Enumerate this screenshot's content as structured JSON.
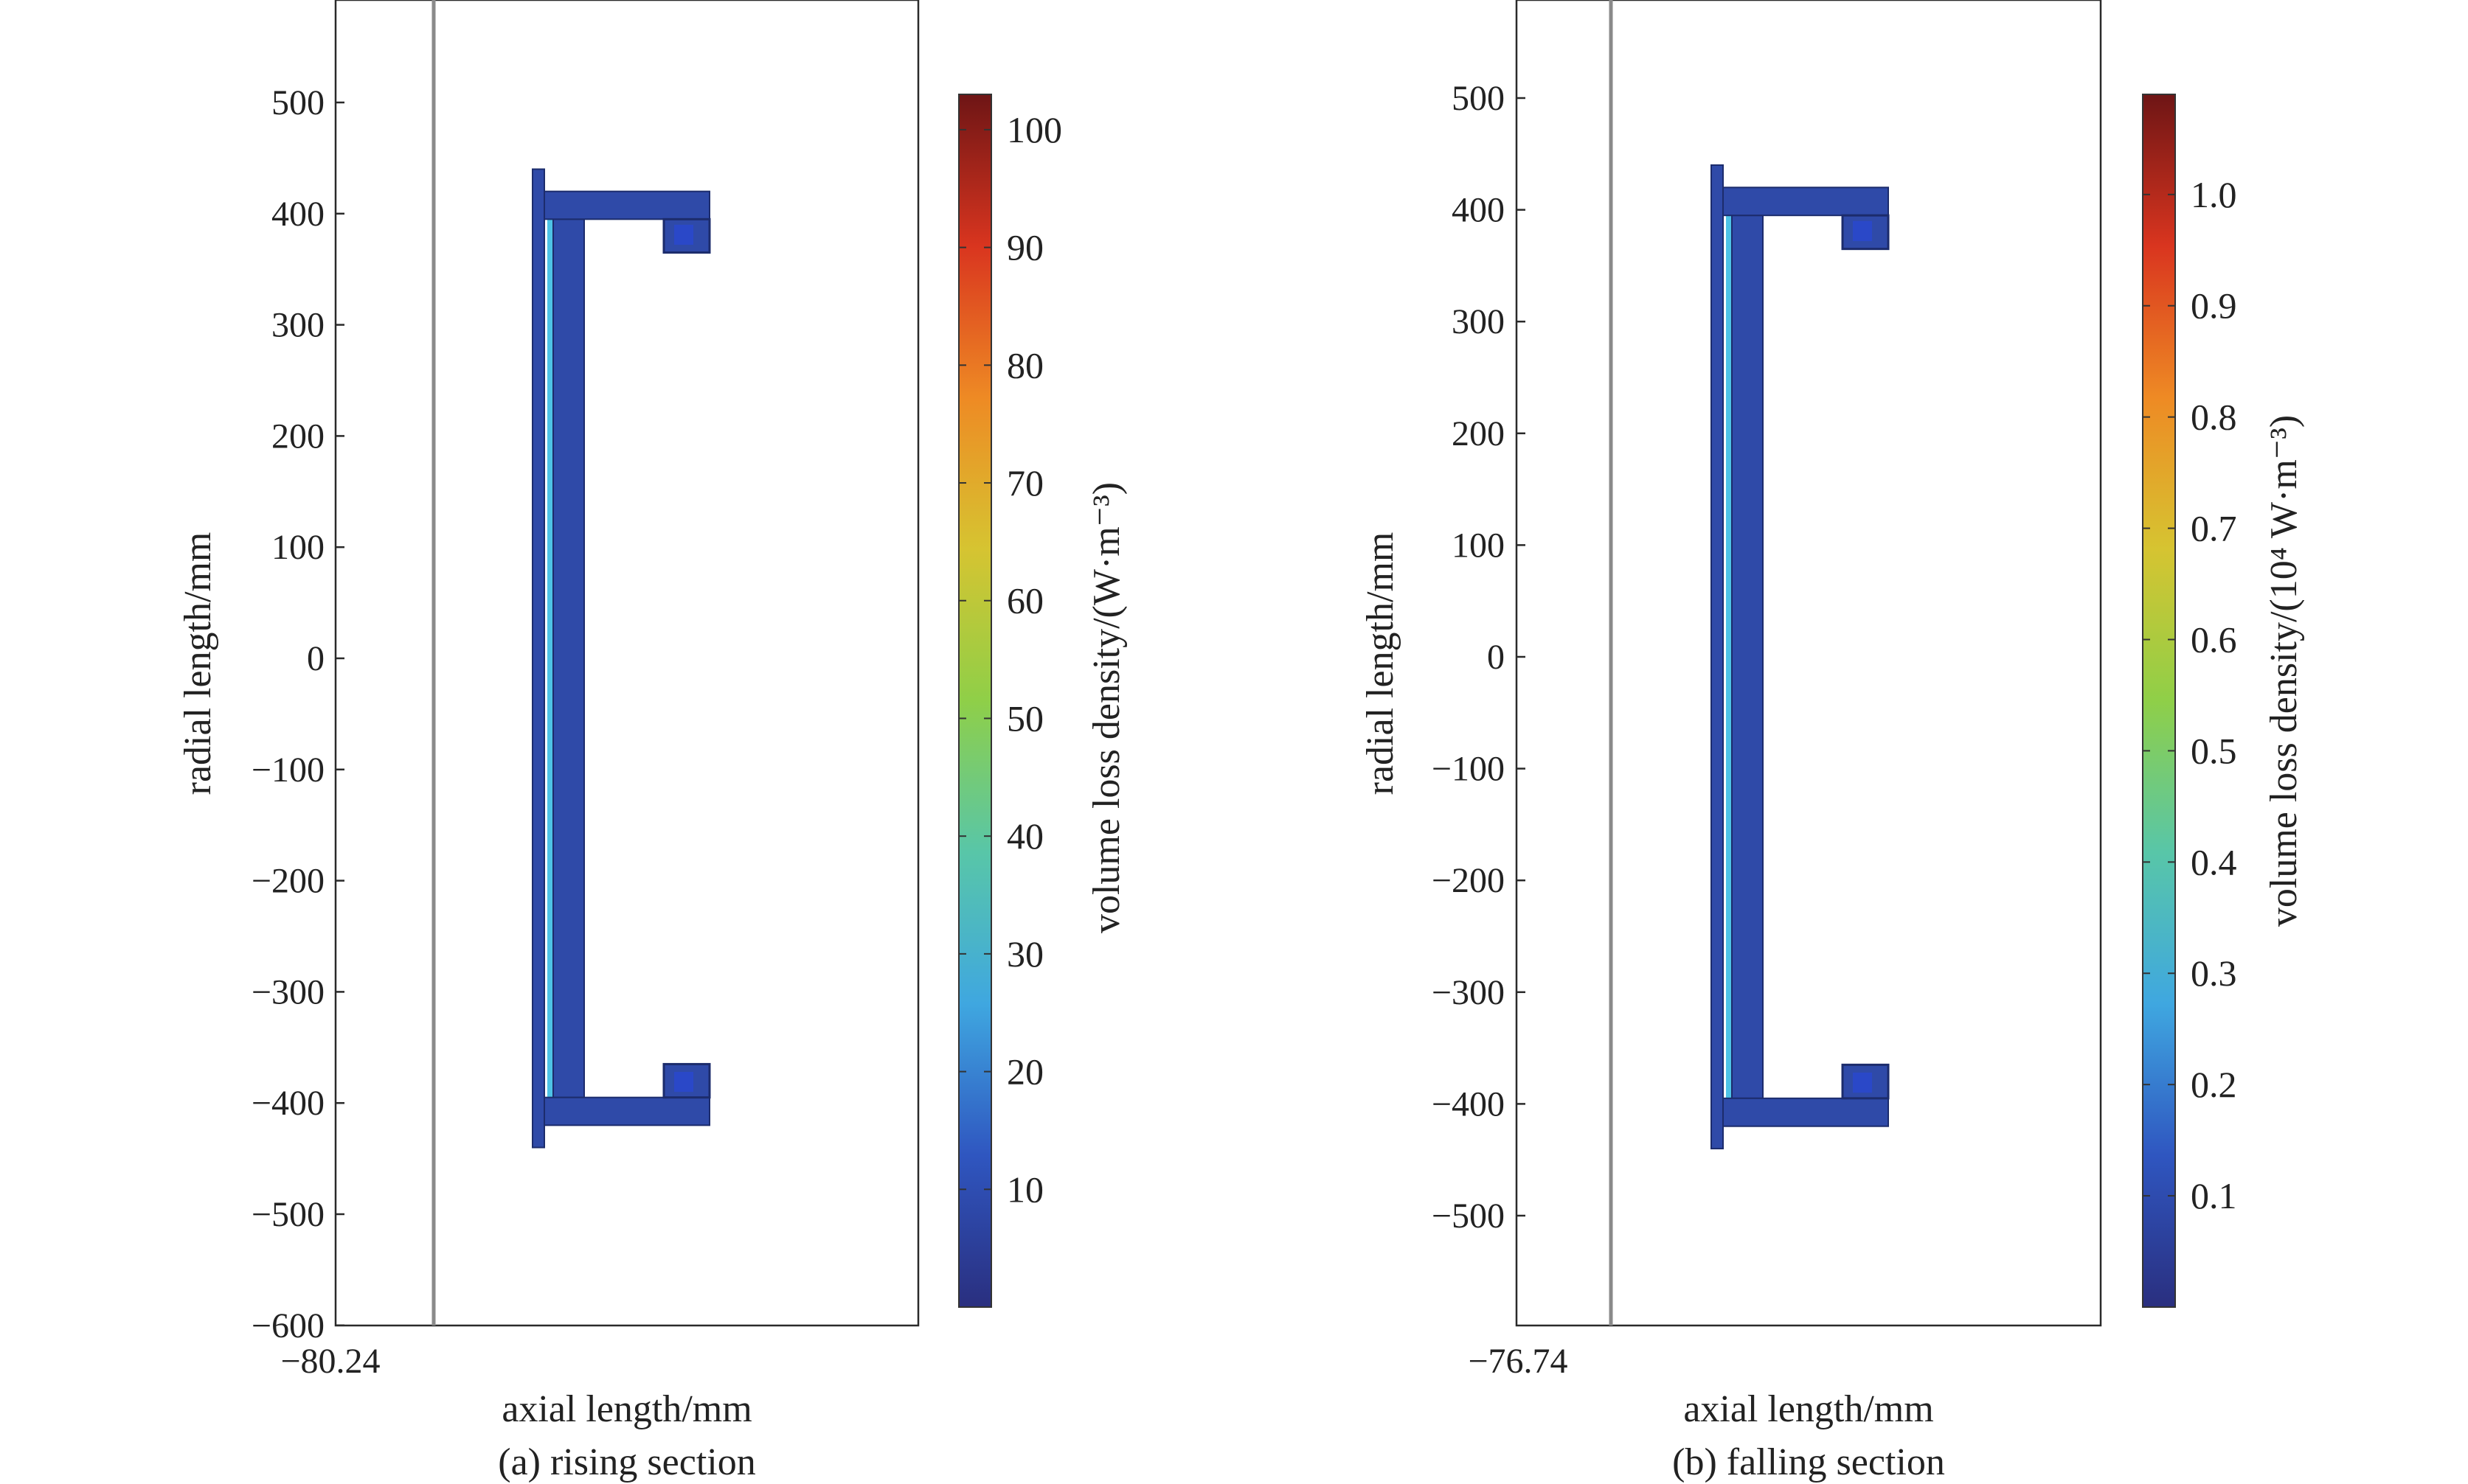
{
  "colors": {
    "frame": "#2a2a2a",
    "wall_line": "#8a8a8a",
    "region_fill": "#2f4aa8",
    "region_edge": "#1c2c6c",
    "inner_edge": "#4ec3e6",
    "colormap": [
      "#2a2f7f",
      "#2f56c0",
      "#3fa7e0",
      "#58c6a8",
      "#8fcf48",
      "#d6c431",
      "#ee8a24",
      "#d9351f",
      "#6e1515"
    ]
  },
  "chart_data": [
    {
      "type": "heatmap",
      "title": "",
      "caption": "(a) rising section",
      "xlabel": "axial length/mm",
      "ylabel": "radial length/mm",
      "x_tick_labels": [
        "−80.24"
      ],
      "ylim": [
        -600,
        600
      ],
      "y_ticks": [
        500,
        400,
        300,
        200,
        100,
        0,
        -100,
        -200,
        -300,
        -400,
        -500,
        -600
      ],
      "y_tick_labels": [
        "500",
        "400",
        "300",
        "200",
        "100",
        "0",
        "−100",
        "−200",
        "−300",
        "−400",
        "−500",
        "−600"
      ],
      "colorbar": {
        "label": "volume loss density/(W·m⁻³)",
        "range": [
          0,
          103
        ],
        "ticks": [
          10,
          20,
          30,
          40,
          50,
          60,
          70,
          80,
          90,
          100
        ],
        "tick_labels": [
          "10",
          "20",
          "30",
          "40",
          "50",
          "60",
          "70",
          "80",
          "90",
          "100"
        ]
      },
      "field_level": 0.1
    },
    {
      "type": "heatmap",
      "title": "",
      "caption": "(b) falling section",
      "xlabel": "axial length/mm",
      "ylabel": "radial length/mm",
      "x_tick_labels": [
        "−76.74"
      ],
      "ylim": [
        -600,
        590
      ],
      "y_ticks": [
        500,
        400,
        300,
        200,
        100,
        0,
        -100,
        -200,
        -300,
        -400,
        -500
      ],
      "y_tick_labels": [
        "500",
        "400",
        "300",
        "200",
        "100",
        "0",
        "−100",
        "−200",
        "−300",
        "−400",
        "−500"
      ],
      "colorbar": {
        "label": "volume loss density/(10⁴ W·m⁻³)",
        "range": [
          0,
          1.09
        ],
        "ticks": [
          0.1,
          0.2,
          0.3,
          0.4,
          0.5,
          0.6,
          0.7,
          0.8,
          0.9,
          1.0
        ],
        "tick_labels": [
          "0.1",
          "0.2",
          "0.3",
          "0.4",
          "0.5",
          "0.6",
          "0.7",
          "0.8",
          "0.9",
          "1.0"
        ]
      },
      "field_level": 0.1
    }
  ]
}
